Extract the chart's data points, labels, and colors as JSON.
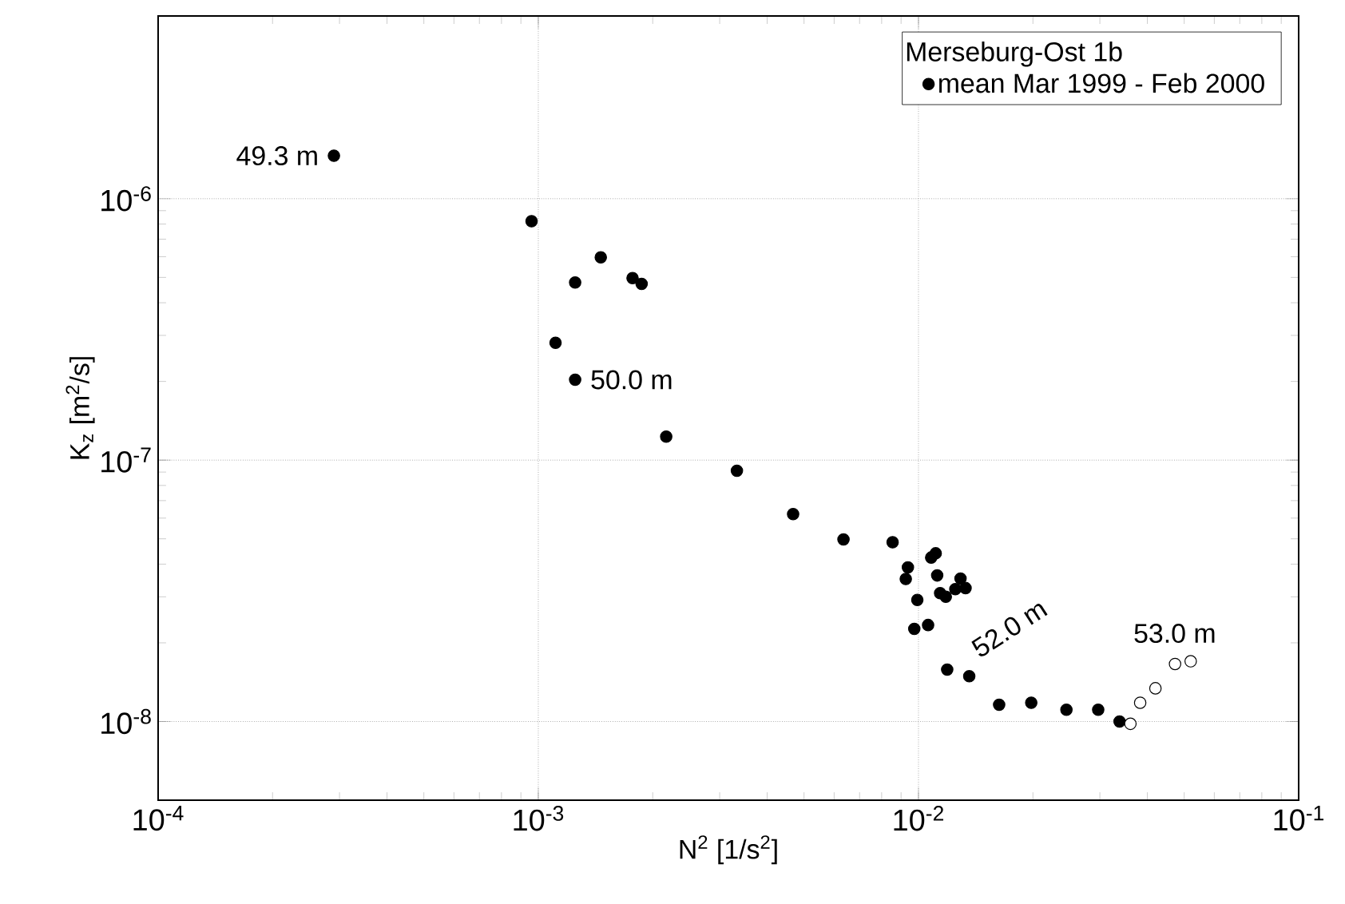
{
  "chart_data": {
    "type": "scatter",
    "xlabel": "N$^{2}$ [1/s$^{2}$]",
    "ylabel": "K$_{z}$ [m$^{2}$/s]",
    "legend_title": "Merseburg-Ost 1b",
    "log": "xy",
    "grid": true,
    "legend": "top right",
    "marker": "circle",
    "xlim": [
      0.0001,
      0.1
    ],
    "ylim": [
      5e-09,
      5e-06
    ],
    "xticks": [
      {
        "value": 0.0001,
        "label": "10$^{-4}$"
      },
      {
        "value": 0.001,
        "label": "10$^{-3}$"
      },
      {
        "value": 0.01,
        "label": "10$^{-2}$"
      },
      {
        "value": 0.1,
        "label": "10$^{-1}$"
      }
    ],
    "yticks": [
      {
        "value": 1e-08,
        "label": "10$^{-8}$"
      },
      {
        "value": 1e-07,
        "label": "10$^{-7}$"
      },
      {
        "value": 1e-06,
        "label": "10$^{-6}$"
      }
    ],
    "series": [
      {
        "name": "mean Mar 1999 - Feb 2000",
        "color": "#000000",
        "x": [
          0.00029,
          0.00096,
          0.00146,
          0.00125,
          0.00177,
          0.00187,
          0.00111,
          0.00125,
          0.00217,
          0.00333,
          0.00468,
          0.00635,
          0.00855,
          0.00938,
          0.00926,
          0.0108,
          0.0111,
          0.0112,
          0.00993,
          0.0114,
          0.0118,
          0.0129,
          0.0133,
          0.0125,
          0.00975,
          0.0106,
          0.0119,
          0.0136,
          0.0163,
          0.0198,
          0.0245,
          0.0297,
          0.0338
        ],
        "values": [
          1.46e-06,
          8.2e-07,
          5.97e-07,
          4.78e-07,
          4.97e-07,
          4.72e-07,
          2.81e-07,
          2.03e-07,
          1.23e-07,
          9.1e-08,
          6.22e-08,
          4.97e-08,
          4.85e-08,
          3.89e-08,
          3.51e-08,
          4.24e-08,
          4.4e-08,
          3.62e-08,
          2.92e-08,
          3.1e-08,
          3e-08,
          3.52e-08,
          3.24e-08,
          3.21e-08,
          2.26e-08,
          2.34e-08,
          1.58e-08,
          1.49e-08,
          1.16e-08,
          1.18e-08,
          1.11e-08,
          1.11e-08,
          1e-08
        ]
      },
      {
        "color": "#ffffff",
        "x": [
          0.0361,
          0.0383,
          0.042,
          0.0473,
          0.052
        ],
        "values": [
          9.8e-09,
          1.18e-08,
          1.34e-08,
          1.66e-08,
          1.7e-08
        ]
      }
    ],
    "annotations": [
      {
        "text": "49.3 m",
        "x": 0.00029,
        "y": 1.46e-06
      },
      {
        "text": "50.0 m",
        "x": 0.00125,
        "y": 2.03e-07
      },
      {
        "text": "52.0 m",
        "x": 0.0136,
        "y": 1.49e-08
      },
      {
        "text": "53.0 m",
        "x": 0.052,
        "y": 1.7e-08
      }
    ]
  }
}
